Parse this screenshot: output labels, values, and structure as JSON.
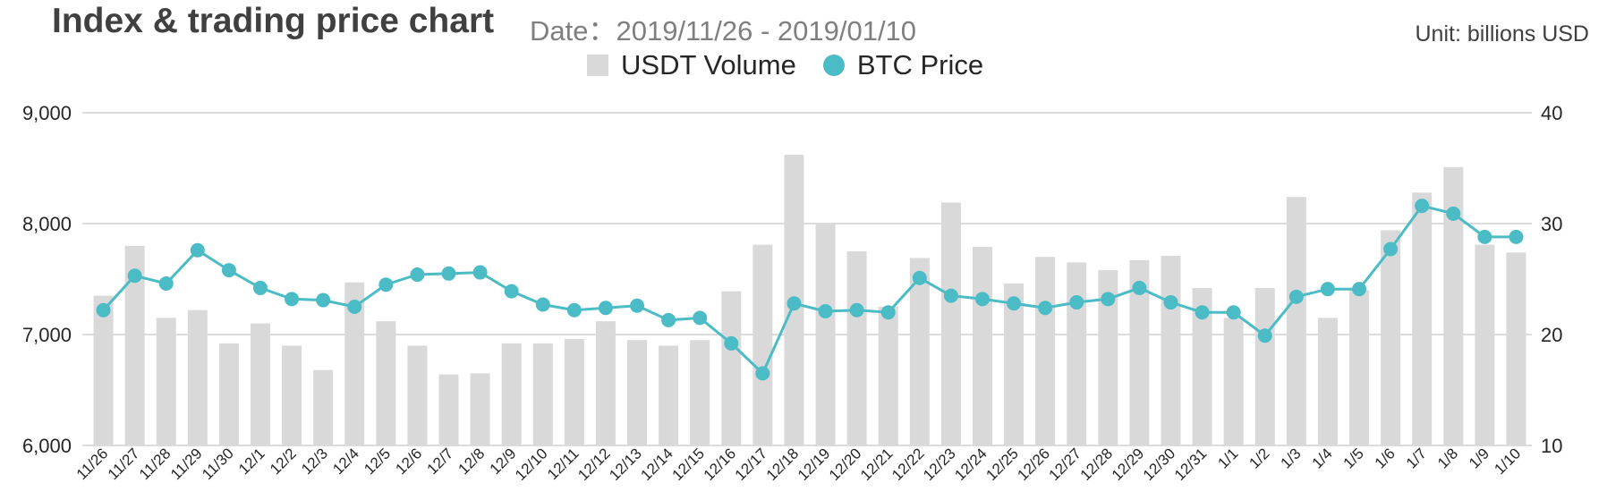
{
  "header": {
    "title": "Index & trading price chart",
    "date_range": "Date：2019/11/26 - 2019/01/10",
    "unit": "Unit: billions USD"
  },
  "colors": {
    "bar": "#d9d9d9",
    "line": "#4bbcc6",
    "grid": "#d0d0d0",
    "text": "#262626"
  },
  "chart_data": {
    "type": "bar+line",
    "categories": [
      "11/26",
      "11/27",
      "11/28",
      "11/29",
      "11/30",
      "12/1",
      "12/2",
      "12/3",
      "12/4",
      "12/5",
      "12/6",
      "12/7",
      "12/8",
      "12/9",
      "12/10",
      "12/11",
      "12/12",
      "12/13",
      "12/14",
      "12/15",
      "12/16",
      "12/17",
      "12/18",
      "12/19",
      "12/20",
      "12/21",
      "12/22",
      "12/23",
      "12/24",
      "12/25",
      "12/26",
      "12/27",
      "12/28",
      "12/29",
      "12/30",
      "12/31",
      "1/1",
      "1/2",
      "1/3",
      "1/4",
      "1/5",
      "1/6",
      "1/7",
      "1/8",
      "1/9",
      "1/10"
    ],
    "series": [
      {
        "name": "USDT Volume",
        "type": "bar",
        "axis": "right",
        "values": [
          23.5,
          28.0,
          21.5,
          22.2,
          19.2,
          21.0,
          19.0,
          16.8,
          24.7,
          21.2,
          19.0,
          16.4,
          16.5,
          19.2,
          19.2,
          19.6,
          21.2,
          19.5,
          19.0,
          19.5,
          23.9,
          28.1,
          36.2,
          30.0,
          27.5,
          22.5,
          26.9,
          31.9,
          27.9,
          24.6,
          27.0,
          26.5,
          25.8,
          26.7,
          27.1,
          24.2,
          21.5,
          24.2,
          32.4,
          21.5,
          24.0,
          29.4,
          32.8,
          35.1,
          28.1,
          27.4
        ]
      },
      {
        "name": "BTC Price",
        "type": "line",
        "axis": "left",
        "values": [
          7220,
          7530,
          7460,
          7760,
          7580,
          7420,
          7320,
          7310,
          7250,
          7450,
          7540,
          7550,
          7560,
          7390,
          7270,
          7220,
          7240,
          7260,
          7130,
          7150,
          6920,
          6650,
          7280,
          7210,
          7220,
          7200,
          7510,
          7350,
          7320,
          7280,
          7240,
          7290,
          7320,
          7420,
          7290,
          7200,
          7200,
          6990,
          7340,
          7410,
          7410,
          7770,
          8160,
          8090,
          7880,
          7880
        ]
      }
    ],
    "left_axis": {
      "ylim": [
        6000,
        9000
      ],
      "ticks": [
        "6,000",
        "7,000",
        "8,000",
        "9,000"
      ]
    },
    "right_axis": {
      "ylim": [
        10,
        40
      ],
      "ticks": [
        "10",
        "20",
        "30",
        "40"
      ]
    },
    "legend": {
      "position": "top-center",
      "entries": [
        "USDT Volume",
        "BTC Price"
      ]
    },
    "grid": true
  }
}
